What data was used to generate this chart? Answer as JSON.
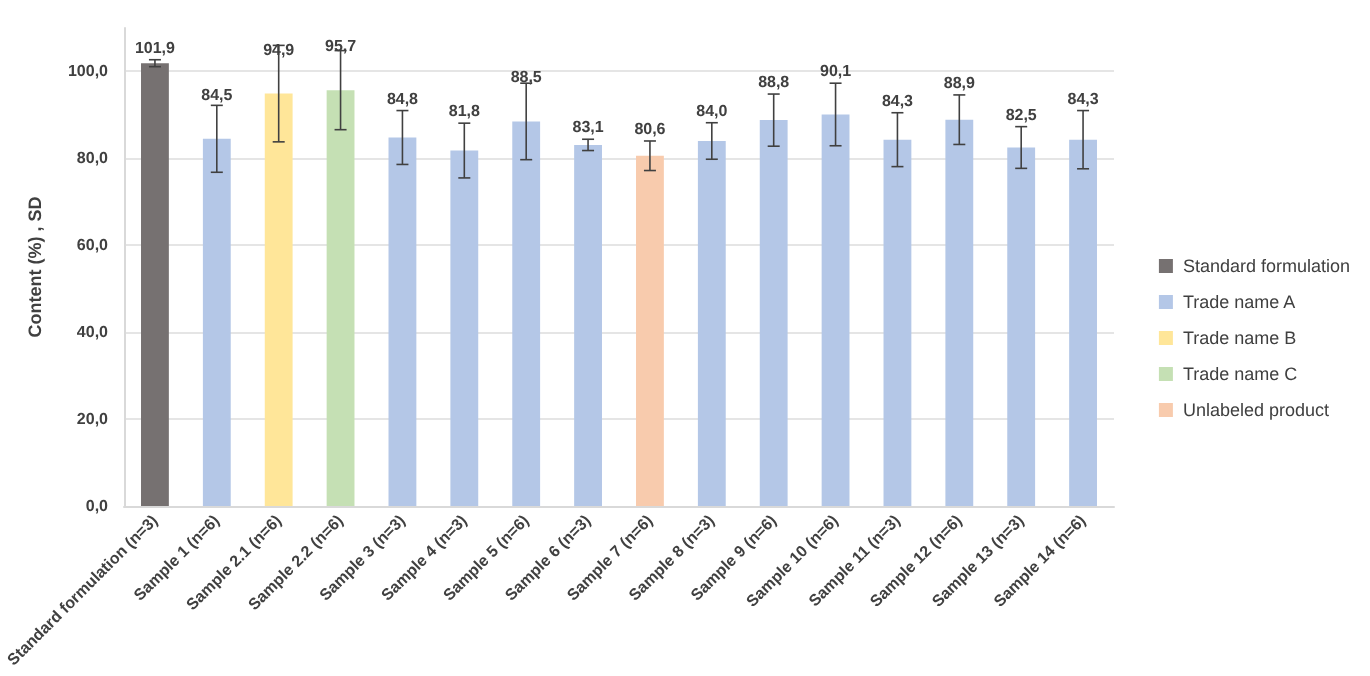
{
  "chart_data": {
    "type": "bar",
    "ylabel": "Content (%) , SD",
    "categories": [
      "Standard formulation (n=3)",
      "Sample 1 (n=6)",
      "Sample 2.1 (n=6)",
      "Sample 2.2 (n=6)",
      "Sample 3 (n=3)",
      "Sample 4 (n=3)",
      "Sample 5 (n=6)",
      "Sample 6 (n=3)",
      "Sample 7 (n=6)",
      "Sample 8 (n=3)",
      "Sample 9 (n=6)",
      "Sample 10 (n=6)",
      "Sample 11 (n=3)",
      "Sample 12 (n=6)",
      "Sample 13 (n=3)",
      "Sample 14 (n=6)"
    ],
    "series": [
      {
        "name": "Standard formulation",
        "color": "#767171",
        "values": [
          101.9,
          null,
          null,
          null,
          null,
          null,
          null,
          null,
          null,
          null,
          null,
          null,
          null,
          null,
          null,
          null
        ],
        "errors": [
          0.8,
          null,
          null,
          null,
          null,
          null,
          null,
          null,
          null,
          null,
          null,
          null,
          null,
          null,
          null,
          null
        ],
        "value_labels": [
          "101,9",
          null,
          null,
          null,
          null,
          null,
          null,
          null,
          null,
          null,
          null,
          null,
          null,
          null,
          null,
          null
        ]
      },
      {
        "name": "Trade name A",
        "color": "#b4c7e7",
        "values": [
          null,
          84.5,
          null,
          null,
          84.8,
          81.8,
          88.5,
          83.1,
          null,
          84.0,
          88.8,
          90.1,
          84.3,
          88.9,
          82.5,
          84.3
        ],
        "errors": [
          null,
          7.7,
          null,
          null,
          6.2,
          6.3,
          8.8,
          1.3,
          null,
          4.2,
          6.0,
          7.2,
          6.2,
          5.7,
          4.8,
          6.7
        ],
        "value_labels": [
          null,
          "84,5",
          null,
          null,
          "84,8",
          "81,8",
          "88,5",
          "83,1",
          null,
          "84,0",
          "88,8",
          "90,1",
          "84,3",
          "88,9",
          "82,5",
          "84,3"
        ]
      },
      {
        "name": "Trade name B",
        "color": "#ffe699",
        "values": [
          null,
          null,
          94.9,
          null,
          null,
          null,
          null,
          null,
          null,
          null,
          null,
          null,
          null,
          null,
          null,
          null
        ],
        "errors": [
          null,
          null,
          11.1,
          null,
          null,
          null,
          null,
          null,
          null,
          null,
          null,
          null,
          null,
          null,
          null,
          null
        ],
        "value_labels": [
          null,
          null,
          "94,9",
          null,
          null,
          null,
          null,
          null,
          null,
          null,
          null,
          null,
          null,
          null,
          null,
          null
        ]
      },
      {
        "name": "Trade name C",
        "color": "#c5e0b4",
        "values": [
          null,
          null,
          null,
          95.7,
          null,
          null,
          null,
          null,
          null,
          null,
          null,
          null,
          null,
          null,
          null,
          null
        ],
        "errors": [
          null,
          null,
          null,
          9.1,
          null,
          null,
          null,
          null,
          null,
          null,
          null,
          null,
          null,
          null,
          null,
          null
        ],
        "value_labels": [
          null,
          null,
          null,
          "95,7",
          null,
          null,
          null,
          null,
          null,
          null,
          null,
          null,
          null,
          null,
          null,
          null
        ]
      },
      {
        "name": "Unlabeled product",
        "color": "#f8cbad",
        "values": [
          null,
          null,
          null,
          null,
          null,
          null,
          null,
          null,
          80.6,
          null,
          null,
          null,
          null,
          null,
          null,
          null
        ],
        "errors": [
          null,
          null,
          null,
          null,
          null,
          null,
          null,
          null,
          3.4,
          null,
          null,
          null,
          null,
          null,
          null,
          null
        ],
        "value_labels": [
          null,
          null,
          null,
          null,
          null,
          null,
          null,
          null,
          "80,6",
          null,
          null,
          null,
          null,
          null,
          null,
          null
        ]
      }
    ],
    "ylim": [
      0,
      110
    ],
    "yticks": [
      {
        "value": 0,
        "label": "0,0"
      },
      {
        "value": 20,
        "label": "20,0"
      },
      {
        "value": 40,
        "label": "40,0"
      },
      {
        "value": 60,
        "label": "60,0"
      },
      {
        "value": 80,
        "label": "80,0"
      },
      {
        "value": 100,
        "label": "100,0"
      }
    ],
    "grid": "y",
    "legend": "right"
  }
}
